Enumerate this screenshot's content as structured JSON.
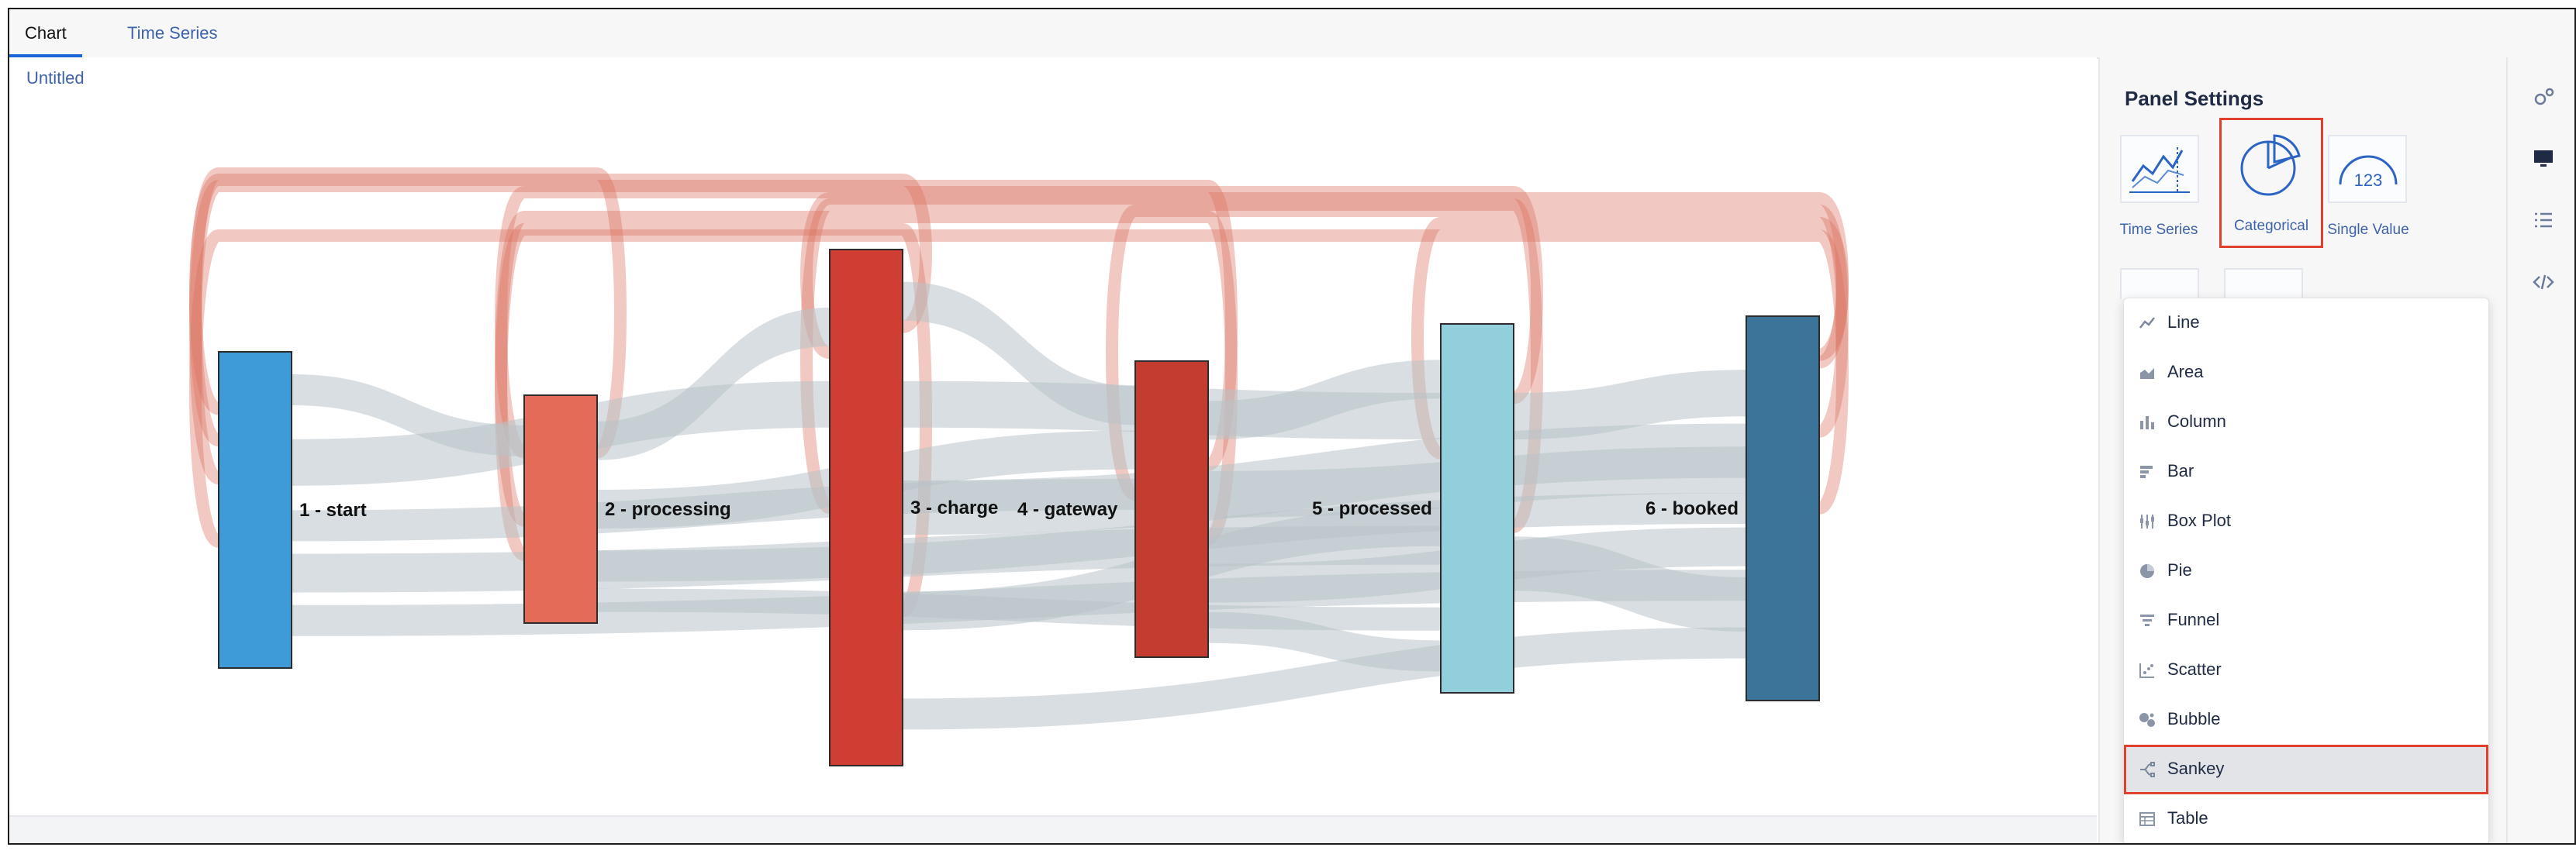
{
  "tabs": [
    {
      "label": "Chart",
      "active": true
    },
    {
      "label": "Time Series",
      "active": false
    }
  ],
  "chart": {
    "title": "Untitled",
    "chart_data": {
      "type": "sankey",
      "nodes": [
        {
          "name": "1 - start",
          "color": "#3f9bd8"
        },
        {
          "name": "2 - processing",
          "color": "#e36b58"
        },
        {
          "name": "3 - charge",
          "color": "#cf3d33"
        },
        {
          "name": "4 - gateway",
          "color": "#c43b30"
        },
        {
          "name": "5 - processed",
          "color": "#92cfdc"
        },
        {
          "name": "6 - booked",
          "color": "#3c7399"
        }
      ],
      "forward_link_color": "#b8c3c8",
      "back_link_color": "#d9705f"
    }
  },
  "panel": {
    "title": "Panel Settings",
    "viz_types": [
      {
        "label": "Time Series",
        "icon": "time-series-chart-icon",
        "selected": false
      },
      {
        "label": "Categorical",
        "icon": "pie-chart-icon",
        "selected": true
      },
      {
        "label": "Single Value",
        "icon": "gauge-icon",
        "selected": false
      }
    ]
  },
  "dropdown": {
    "items": [
      {
        "label": "Line",
        "icon": "line-chart-icon"
      },
      {
        "label": "Area",
        "icon": "area-chart-icon"
      },
      {
        "label": "Column",
        "icon": "column-chart-icon"
      },
      {
        "label": "Bar",
        "icon": "bar-chart-icon"
      },
      {
        "label": "Box Plot",
        "icon": "box-plot-icon"
      },
      {
        "label": "Pie",
        "icon": "pie-icon"
      },
      {
        "label": "Funnel",
        "icon": "funnel-icon"
      },
      {
        "label": "Scatter",
        "icon": "scatter-icon"
      },
      {
        "label": "Bubble",
        "icon": "bubble-icon"
      },
      {
        "label": "Sankey",
        "icon": "sankey-icon",
        "selected": true
      },
      {
        "label": "Table",
        "icon": "table-icon"
      }
    ]
  },
  "rail": {
    "icons": [
      "settings-gears-icon",
      "monitor-icon",
      "list-icon",
      "code-icon"
    ]
  }
}
